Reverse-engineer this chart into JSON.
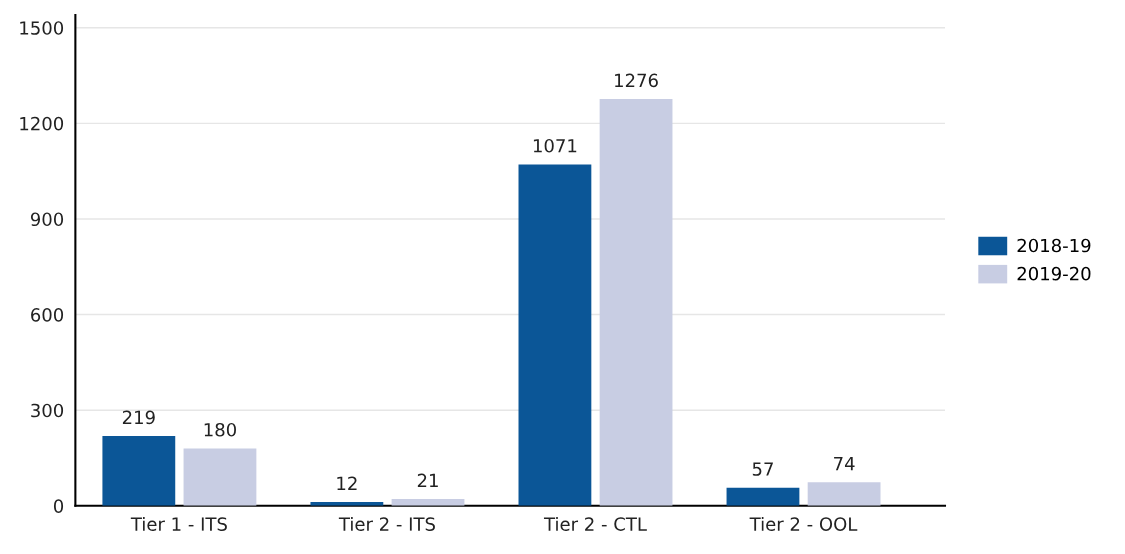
{
  "chart_data": {
    "type": "bar",
    "categories": [
      "Tier 1 - ITS",
      "Tier 2 - ITS",
      "Tier 2 - CTL",
      "Tier 2 - OOL"
    ],
    "series": [
      {
        "name": "2018-19",
        "color": "#0b5697",
        "values": [
          219,
          12,
          1071,
          57
        ]
      },
      {
        "name": "2019-20",
        "color": "#c8cde3",
        "values": [
          180,
          21,
          1276,
          74
        ]
      }
    ],
    "ylim": [
      0,
      1540
    ],
    "yticks": [
      0,
      300,
      600,
      900,
      1200,
      1500
    ],
    "grid": "y",
    "legend": "right",
    "data_labels": true
  }
}
